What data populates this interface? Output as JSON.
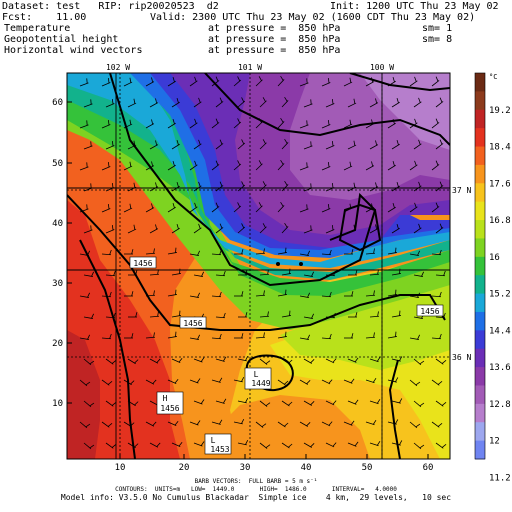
{
  "header": {
    "dataset": "Dataset: test   RIP: rip20020523  d2",
    "init": "Init: 1200 UTC Thu 23 May 02",
    "fcst": "Fcst:    11.00",
    "valid": "Valid: 2300 UTC Thu 23 May 02 (1600 CDT Thu 23 May 02)",
    "fields": [
      {
        "name": "Temperature",
        "level": "at pressure =  850 hPa",
        "sm": "sm= 1"
      },
      {
        "name": "Geopotential height",
        "level": "at pressure =  850 hPa",
        "sm": "sm= 8"
      },
      {
        "name": "Horizontal wind vectors",
        "level": "at pressure =  850 hPa",
        "sm": ""
      }
    ]
  },
  "map": {
    "x_ticks": [
      "10",
      "20",
      "30",
      "40",
      "50",
      "60"
    ],
    "y_ticks": [
      "10",
      "20",
      "30",
      "40",
      "50",
      "60"
    ],
    "longitude_labels": [
      "102 W",
      "101 W",
      "100 W"
    ],
    "latitude_labels": [
      "37 N",
      "36 N"
    ],
    "height_labels": [
      "1456",
      "1456",
      "1456",
      "1456",
      "1453",
      "1449"
    ],
    "high_label": {
      "letter": "H",
      "value": "1456"
    },
    "lows": [
      {
        "letter": "L",
        "value": "1449"
      },
      {
        "letter": "L",
        "value": "1453"
      }
    ]
  },
  "colorbar": {
    "unit": "°C",
    "labels": [
      "19.2",
      "18.4",
      "17.6",
      "16.8",
      "16",
      "15.2",
      "14.4",
      "13.6",
      "12.8",
      "12",
      "11.2"
    ],
    "colors": [
      "#6b2a14",
      "#8c3a1c",
      "#c02424",
      "#e3321f",
      "#f2611f",
      "#f7941d",
      "#f7c31d",
      "#e9e31b",
      "#b9e11b",
      "#7ed321",
      "#35c23a",
      "#12b28c",
      "#1aa8d8",
      "#1f6fe6",
      "#3b3bd6",
      "#6b2eb6",
      "#8b3aa8",
      "#a25bb6",
      "#b67ecc",
      "#9da7ef",
      "#6f84f1"
    ]
  },
  "footer": {
    "line1": "BARB VECTORS:  FULL BARB = 5 m s⁻¹",
    "line2": "CONTOURS:  UNITS=m   LOW=  1449.0       HIGH=  1486.0       INTERVAL=   4.0000",
    "line3": "Model info: V3.5.0 No Cumulus Blackadar  Simple ice    4 km,  29 levels,   10 sec"
  }
}
